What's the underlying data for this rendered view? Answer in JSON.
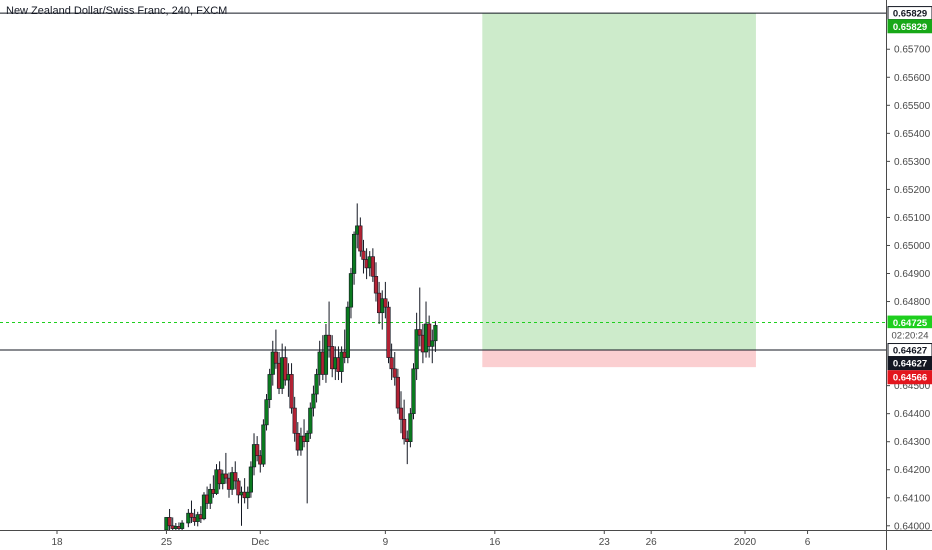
{
  "chart_title": "New Zealand Dollar/Swiss Franc, 240, FXCM",
  "colors": {
    "up": "#26a69a",
    "up_fill": "#0a7a1f",
    "down": "#b22234",
    "wick": "#131722",
    "target_zone": "#cdebcb",
    "stop_zone": "#fbcfd1",
    "current_price_line": "#1ecf1e",
    "entry_line": "#131722",
    "target_badge": "#18a818",
    "stop_badge": "#e3161e",
    "entry_badge": "#131722"
  },
  "chart_data": {
    "type": "candlestick",
    "title": "New Zealand Dollar/Swiss Franc, 240, FXCM",
    "x_ticks": [
      {
        "label": "18",
        "day": 18
      },
      {
        "label": "25",
        "day": 25
      },
      {
        "label": "Dec",
        "day": 31
      },
      {
        "label": "9",
        "day": 39
      },
      {
        "label": "16",
        "day": 46
      },
      {
        "label": "23",
        "day": 53
      },
      {
        "label": "26",
        "day": 56
      },
      {
        "label": "2020",
        "day": 62
      },
      {
        "label": "6",
        "day": 66
      }
    ],
    "y_ticks": [
      "0.65700",
      "0.65600",
      "0.65500",
      "0.65400",
      "0.65300",
      "0.65200",
      "0.65100",
      "0.65000",
      "0.64900",
      "0.64800",
      "0.64500",
      "0.64400",
      "0.64300",
      "0.64200",
      "0.64100",
      "0.64000"
    ],
    "ylim": [
      0.63985,
      0.6584
    ],
    "price_labels": [
      {
        "label": "0.65829",
        "price": 0.65829,
        "style": "target-outline"
      },
      {
        "label": "0.65829",
        "price": 0.65782,
        "style": "target"
      },
      {
        "label": "0.64725",
        "price": 0.64725,
        "style": "current"
      },
      {
        "label": "02:20:24",
        "price": 0.6468,
        "style": "countdown"
      },
      {
        "label": "0.64627",
        "price": 0.64627,
        "style": "entry"
      },
      {
        "label": "0.64627",
        "price": 0.6458,
        "style": "entry-dark"
      },
      {
        "label": "0.64566",
        "price": 0.6453,
        "style": "stop"
      }
    ],
    "position": {
      "type": "long",
      "entry": 0.64627,
      "target": 0.65829,
      "stop": 0.64566,
      "start_day": 45.2,
      "end_day": 62.7
    },
    "current_price": 0.64725,
    "candles": [
      [
        25.0,
        0.63985,
        0.6403,
        0.63985,
        0.6403
      ],
      [
        25.2,
        0.6403,
        0.6406,
        0.63985,
        0.64
      ],
      [
        25.4,
        0.64,
        0.6403,
        0.63985,
        0.6399
      ],
      [
        25.6,
        0.6399,
        0.6401,
        0.63985,
        0.63998
      ],
      [
        25.8,
        0.63998,
        0.64012,
        0.63985,
        0.6399
      ],
      [
        26.0,
        0.6399,
        0.6402,
        0.63985,
        0.6401
      ],
      [
        26.4,
        0.6401,
        0.6406,
        0.63995,
        0.64045
      ],
      [
        26.6,
        0.64045,
        0.6409,
        0.6401,
        0.6403
      ],
      [
        26.8,
        0.6403,
        0.6406,
        0.64,
        0.64015
      ],
      [
        27.0,
        0.64015,
        0.6405,
        0.63998,
        0.6404
      ],
      [
        27.2,
        0.6404,
        0.6407,
        0.6401,
        0.64025
      ],
      [
        27.4,
        0.64025,
        0.6412,
        0.6402,
        0.6411
      ],
      [
        27.6,
        0.6411,
        0.6414,
        0.6406,
        0.6408
      ],
      [
        27.8,
        0.6408,
        0.6415,
        0.6406,
        0.6413
      ],
      [
        28.0,
        0.6413,
        0.6418,
        0.641,
        0.64115
      ],
      [
        28.2,
        0.64115,
        0.6422,
        0.6411,
        0.642
      ],
      [
        28.4,
        0.642,
        0.6423,
        0.6413,
        0.6415
      ],
      [
        28.6,
        0.6415,
        0.642,
        0.6413,
        0.64185
      ],
      [
        28.8,
        0.64185,
        0.6426,
        0.6415,
        0.6417
      ],
      [
        29.0,
        0.6417,
        0.6419,
        0.641,
        0.6413
      ],
      [
        29.2,
        0.6413,
        0.6421,
        0.6411,
        0.6419
      ],
      [
        29.4,
        0.6419,
        0.6423,
        0.6413,
        0.6416
      ],
      [
        29.6,
        0.6416,
        0.6417,
        0.6408,
        0.6411
      ],
      [
        29.8,
        0.6411,
        0.6414,
        0.64,
        0.6412
      ],
      [
        30.0,
        0.6412,
        0.6417,
        0.6408,
        0.641
      ],
      [
        30.2,
        0.641,
        0.6414,
        0.6406,
        0.6412
      ],
      [
        30.4,
        0.6412,
        0.6423,
        0.641,
        0.6421
      ],
      [
        30.6,
        0.6421,
        0.6433,
        0.6418,
        0.6429
      ],
      [
        30.8,
        0.6429,
        0.6432,
        0.6423,
        0.6425
      ],
      [
        31.0,
        0.6425,
        0.6427,
        0.6419,
        0.6422
      ],
      [
        31.2,
        0.6422,
        0.6438,
        0.6421,
        0.6436
      ],
      [
        31.4,
        0.6436,
        0.6447,
        0.6434,
        0.6445
      ],
      [
        31.6,
        0.6445,
        0.6456,
        0.6442,
        0.6454
      ],
      [
        31.8,
        0.6454,
        0.6466,
        0.645,
        0.6462
      ],
      [
        32.0,
        0.6462,
        0.647,
        0.6456,
        0.6458
      ],
      [
        32.2,
        0.6458,
        0.6462,
        0.6447,
        0.6449
      ],
      [
        32.4,
        0.6449,
        0.6465,
        0.6447,
        0.646
      ],
      [
        32.6,
        0.646,
        0.6464,
        0.645,
        0.6452
      ],
      [
        32.8,
        0.6452,
        0.6458,
        0.6446,
        0.6454
      ],
      [
        33.0,
        0.6454,
        0.6458,
        0.644,
        0.6442
      ],
      [
        33.2,
        0.6442,
        0.6446,
        0.643,
        0.6433
      ],
      [
        33.4,
        0.6433,
        0.6437,
        0.6425,
        0.6427
      ],
      [
        33.6,
        0.6427,
        0.6435,
        0.6425,
        0.6432
      ],
      [
        33.8,
        0.6432,
        0.6438,
        0.6428,
        0.643
      ],
      [
        34.0,
        0.643,
        0.6434,
        0.6408,
        0.6433
      ],
      [
        34.2,
        0.6433,
        0.6444,
        0.6431,
        0.6442
      ],
      [
        34.4,
        0.6442,
        0.645,
        0.6439,
        0.6447
      ],
      [
        34.6,
        0.6447,
        0.6456,
        0.6444,
        0.6454
      ],
      [
        34.8,
        0.6454,
        0.6466,
        0.645,
        0.6462
      ],
      [
        35.0,
        0.6462,
        0.6468,
        0.6452,
        0.6454
      ],
      [
        35.2,
        0.6454,
        0.6472,
        0.6451,
        0.6468
      ],
      [
        35.4,
        0.6468,
        0.648,
        0.646,
        0.6464
      ],
      [
        35.6,
        0.6464,
        0.6468,
        0.6453,
        0.6456
      ],
      [
        35.8,
        0.6456,
        0.6464,
        0.6452,
        0.646
      ],
      [
        36.0,
        0.646,
        0.6464,
        0.6452,
        0.6455
      ],
      [
        36.2,
        0.6455,
        0.6464,
        0.6451,
        0.6462
      ],
      [
        36.4,
        0.6462,
        0.647,
        0.6458,
        0.646
      ],
      [
        36.6,
        0.646,
        0.648,
        0.6458,
        0.6478
      ],
      [
        36.8,
        0.6478,
        0.6492,
        0.6474,
        0.649
      ],
      [
        37.0,
        0.649,
        0.6505,
        0.6486,
        0.6504
      ],
      [
        37.2,
        0.6504,
        0.6515,
        0.6499,
        0.6507
      ],
      [
        37.4,
        0.6507,
        0.651,
        0.6496,
        0.6498
      ],
      [
        37.6,
        0.6498,
        0.6502,
        0.649,
        0.6495
      ],
      [
        37.8,
        0.6495,
        0.6499,
        0.6488,
        0.6492
      ],
      [
        38.0,
        0.6492,
        0.6498,
        0.6489,
        0.6496
      ],
      [
        38.2,
        0.6496,
        0.6499,
        0.6487,
        0.6489
      ],
      [
        38.4,
        0.6489,
        0.6494,
        0.648,
        0.6483
      ],
      [
        38.6,
        0.6483,
        0.6487,
        0.6472,
        0.6476
      ],
      [
        38.8,
        0.6476,
        0.6484,
        0.647,
        0.6481
      ],
      [
        39.0,
        0.6481,
        0.6487,
        0.6474,
        0.6478
      ],
      [
        39.2,
        0.6478,
        0.648,
        0.6458,
        0.646
      ],
      [
        39.4,
        0.646,
        0.6465,
        0.6452,
        0.6456
      ],
      [
        39.6,
        0.6456,
        0.6462,
        0.645,
        0.6453
      ],
      [
        39.8,
        0.6453,
        0.6456,
        0.644,
        0.6442
      ],
      [
        40.0,
        0.6442,
        0.6448,
        0.6433,
        0.6438
      ],
      [
        40.2,
        0.6438,
        0.6445,
        0.6429,
        0.6431
      ],
      [
        40.4,
        0.6431,
        0.6434,
        0.6422,
        0.643
      ],
      [
        40.6,
        0.643,
        0.6442,
        0.6428,
        0.644
      ],
      [
        40.8,
        0.644,
        0.6458,
        0.6438,
        0.6456
      ],
      [
        41.0,
        0.6456,
        0.6476,
        0.6452,
        0.647
      ],
      [
        41.2,
        0.647,
        0.6485,
        0.6464,
        0.6468
      ],
      [
        41.4,
        0.6468,
        0.6472,
        0.6458,
        0.6462
      ],
      [
        41.6,
        0.6462,
        0.648,
        0.646,
        0.6472
      ],
      [
        41.8,
        0.6472,
        0.6475,
        0.646,
        0.6464
      ],
      [
        42.0,
        0.6464,
        0.647,
        0.6458,
        0.6466
      ],
      [
        42.2,
        0.6466,
        0.6473,
        0.6462,
        0.64715
      ]
    ]
  }
}
